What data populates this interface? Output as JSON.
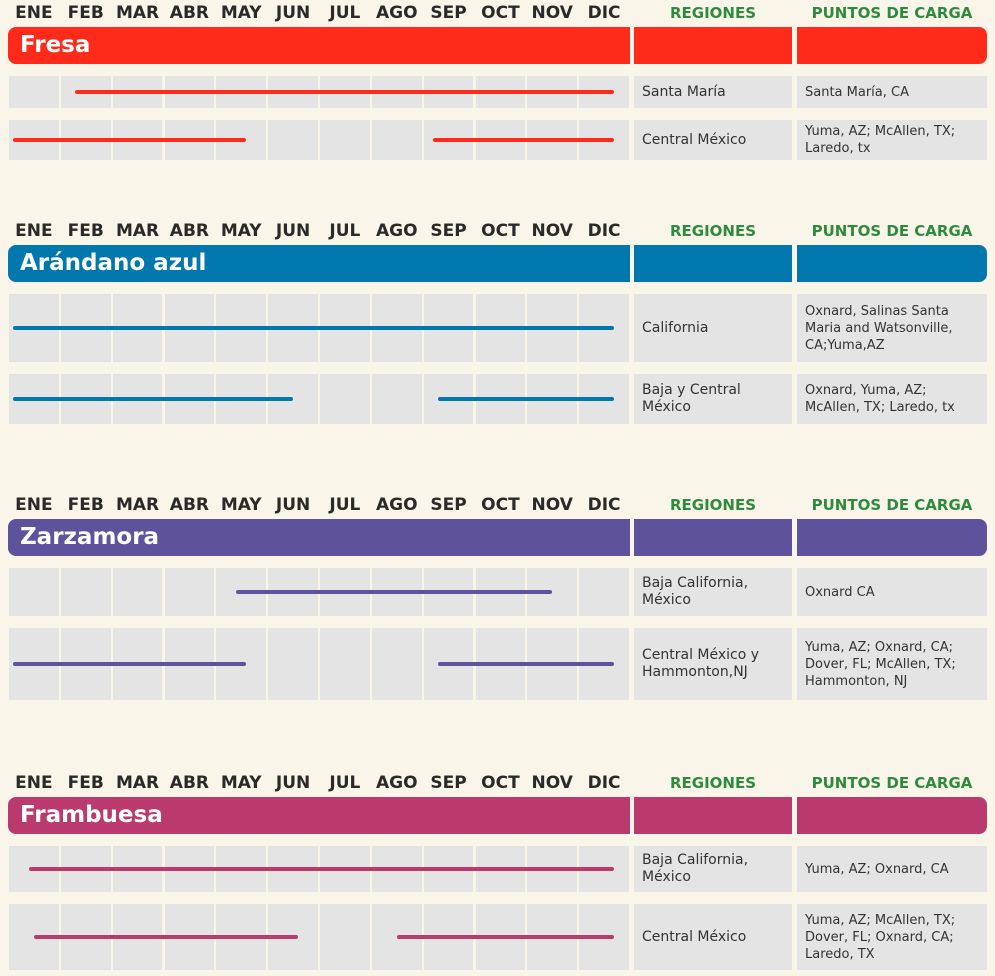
{
  "months": [
    "ENE",
    "FEB",
    "MAR",
    "ABR",
    "MAY",
    "JUN",
    "JUL",
    "AGO",
    "SEP",
    "OCT",
    "NOV",
    "DIC"
  ],
  "regions_header": "REGIONES",
  "points_header": "PUNTOS DE CARGA",
  "sections": [
    {
      "name": "Fresa",
      "color": "#ff2a1a",
      "rows": [
        {
          "region": "Santa María",
          "points": "Santa María, CA",
          "spans": [
            [
              1.3,
              11.7
            ]
          ]
        },
        {
          "region": "Central México",
          "points": "Yuma, AZ; McAllen, TX; Laredo, tx",
          "spans": [
            [
              0.1,
              4.6
            ],
            [
              8.2,
              11.7
            ]
          ]
        }
      ]
    },
    {
      "name": "Arándano azul",
      "color": "#0078ad",
      "rows": [
        {
          "region": "California",
          "points": "Oxnard, Salinas Santa Maria and Watsonville, CA;Yuma,AZ",
          "spans": [
            [
              0.1,
              11.7
            ]
          ]
        },
        {
          "region": "Baja y Central México",
          "points": "Oxnard, Yuma, AZ; McAllen, TX; Laredo, tx",
          "spans": [
            [
              0.1,
              5.5
            ],
            [
              8.3,
              11.7
            ]
          ]
        }
      ]
    },
    {
      "name": "Zarzamora",
      "color": "#5e529c",
      "rows": [
        {
          "region": "Baja California, México",
          "points": "Oxnard CA",
          "spans": [
            [
              4.4,
              10.5
            ]
          ]
        },
        {
          "region": "Central México y Hammonton,NJ",
          "points": "Yuma, AZ; Oxnard, CA; Dover, FL; McAllen, TX; Hammonton, NJ",
          "spans": [
            [
              0.1,
              4.6
            ],
            [
              8.3,
              11.7
            ]
          ]
        }
      ]
    },
    {
      "name": "Frambuesa",
      "color": "#bb3a6e",
      "rows": [
        {
          "region": "Baja California, México",
          "points": "Yuma, AZ; Oxnard, CA",
          "spans": [
            [
              0.4,
              11.7
            ]
          ]
        },
        {
          "region": "Central México",
          "points": "Yuma, AZ; McAllen, TX; Dover, FL; Oxnard, CA; Laredo, TX",
          "spans": [
            [
              0.5,
              5.6
            ],
            [
              7.5,
              11.7
            ]
          ]
        }
      ]
    }
  ]
}
